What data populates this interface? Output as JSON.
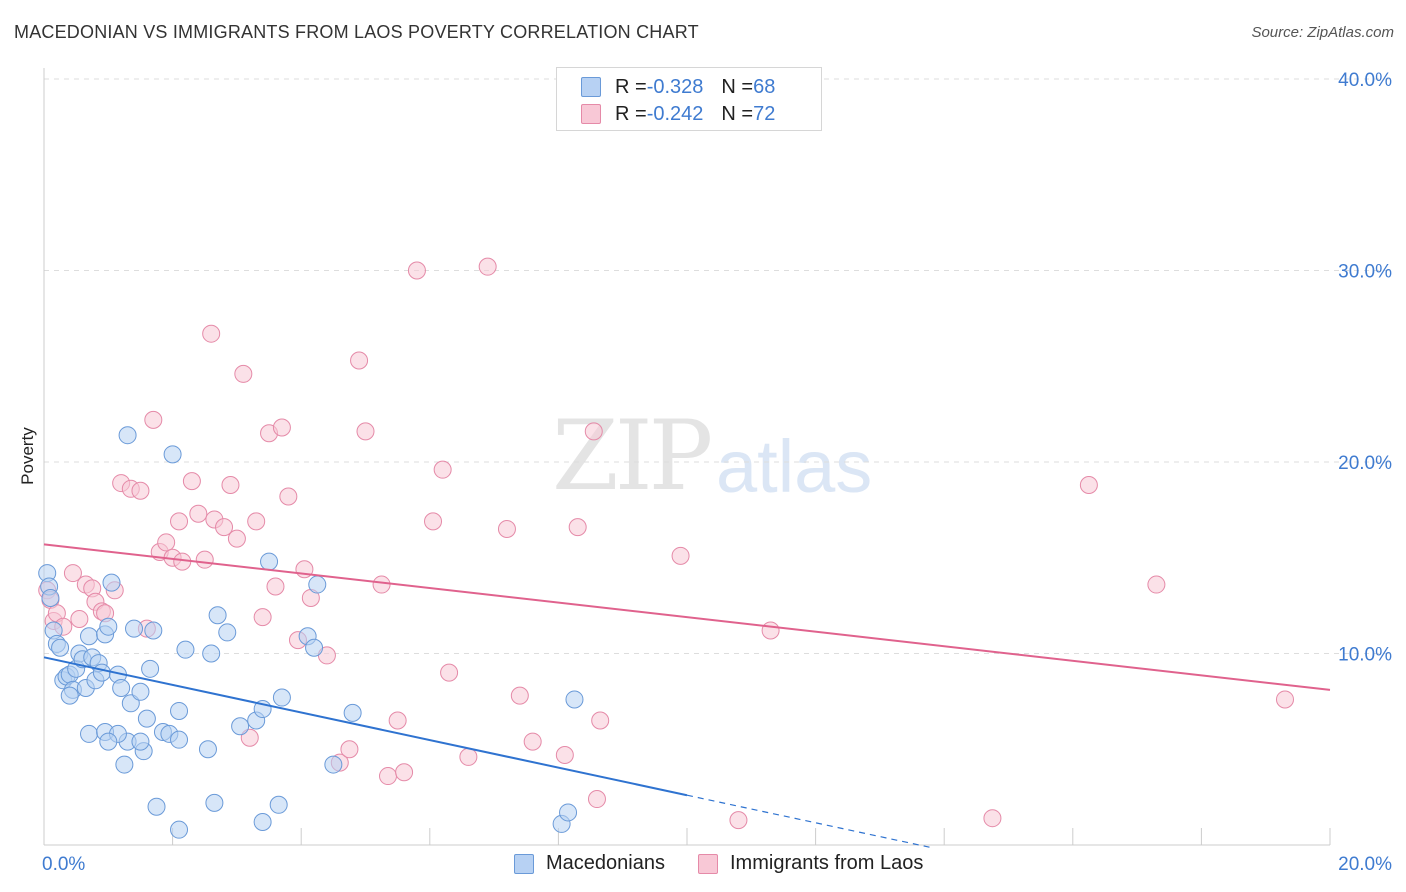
{
  "title": "MACEDONIAN VS IMMIGRANTS FROM LAOS POVERTY CORRELATION CHART",
  "source": "Source: ZipAtlas.com",
  "watermark": {
    "zip": "ZIP",
    "atlas": "atlas"
  },
  "legend": {
    "rows": [
      {
        "r_label": "R = ",
        "r_value": "-0.328",
        "n_label": "N = ",
        "n_value": "68"
      },
      {
        "r_label": "R = ",
        "r_value": "-0.242",
        "n_label": "N = ",
        "n_value": "72"
      }
    ]
  },
  "colors": {
    "blue_fill": "#b7d1f3",
    "blue_stroke": "#6a9ad8",
    "blue_line": "#2f73d0",
    "pink_fill": "#f8c8d6",
    "pink_stroke": "#e58aa8",
    "pink_line": "#e0628d",
    "grid": "#dddddd",
    "tick_text": "#3f7bd0"
  },
  "chart_data": {
    "type": "scatter",
    "title": "MACEDONIAN VS IMMIGRANTS FROM LAOS POVERTY CORRELATION CHART",
    "xlabel": "",
    "ylabel": "Poverty",
    "xlim": [
      0,
      20
    ],
    "ylim": [
      0,
      40
    ],
    "x_ticks": [
      "0.0%",
      "20.0%"
    ],
    "y_ticks": [
      "10.0%",
      "20.0%",
      "30.0%",
      "40.0%"
    ],
    "y_tick_values": [
      10,
      20,
      30,
      40
    ],
    "grid": true,
    "legend_position": "top-center",
    "series": [
      {
        "name": "Macedonians",
        "color": "#6a9ad8",
        "r": -0.328,
        "n": 68,
        "trend": {
          "x0": 0,
          "y0": 9.8,
          "x1": 10,
          "y1": 2.6,
          "dashed_to_x": 13.8
        },
        "points": [
          [
            0.05,
            14.2
          ],
          [
            0.08,
            13.5
          ],
          [
            0.1,
            12.9
          ],
          [
            0.15,
            11.2
          ],
          [
            0.2,
            10.5
          ],
          [
            0.25,
            10.3
          ],
          [
            0.3,
            8.6
          ],
          [
            0.35,
            8.8
          ],
          [
            0.4,
            8.9
          ],
          [
            0.45,
            8.1
          ],
          [
            0.5,
            9.2
          ],
          [
            0.55,
            10.0
          ],
          [
            0.6,
            9.7
          ],
          [
            0.65,
            8.2
          ],
          [
            0.7,
            10.9
          ],
          [
            0.75,
            9.8
          ],
          [
            0.8,
            8.6
          ],
          [
            0.85,
            9.5
          ],
          [
            0.9,
            9.0
          ],
          [
            0.95,
            11.0
          ],
          [
            1.0,
            11.4
          ],
          [
            1.05,
            13.7
          ],
          [
            1.15,
            8.9
          ],
          [
            1.2,
            8.2
          ],
          [
            1.3,
            5.4
          ],
          [
            1.35,
            7.4
          ],
          [
            1.4,
            11.3
          ],
          [
            1.5,
            8.0
          ],
          [
            1.55,
            4.9
          ],
          [
            1.6,
            6.6
          ],
          [
            1.65,
            9.2
          ],
          [
            1.7,
            11.2
          ],
          [
            1.85,
            5.9
          ],
          [
            1.95,
            5.8
          ],
          [
            2.0,
            20.4
          ],
          [
            2.1,
            5.5
          ],
          [
            2.2,
            10.2
          ],
          [
            2.1,
            7.0
          ],
          [
            2.6,
            10.0
          ],
          [
            2.7,
            12.0
          ],
          [
            2.85,
            11.1
          ],
          [
            3.05,
            6.2
          ],
          [
            3.3,
            6.5
          ],
          [
            3.4,
            7.1
          ],
          [
            3.5,
            14.8
          ],
          [
            3.7,
            7.7
          ],
          [
            4.1,
            10.9
          ],
          [
            4.2,
            10.3
          ],
          [
            4.25,
            13.6
          ],
          [
            4.5,
            4.2
          ],
          [
            4.8,
            6.9
          ],
          [
            1.3,
            21.4
          ],
          [
            0.7,
            5.8
          ],
          [
            0.95,
            5.9
          ],
          [
            1.15,
            5.8
          ],
          [
            1.25,
            4.2
          ],
          [
            2.55,
            5.0
          ],
          [
            1.75,
            2.0
          ],
          [
            2.1,
            0.8
          ],
          [
            2.65,
            2.2
          ],
          [
            3.4,
            1.2
          ],
          [
            3.65,
            2.1
          ],
          [
            8.05,
            1.1
          ],
          [
            8.15,
            1.7
          ],
          [
            8.25,
            7.6
          ],
          [
            1.0,
            5.4
          ],
          [
            1.5,
            5.4
          ],
          [
            0.4,
            7.8
          ]
        ]
      },
      {
        "name": "Immigrants from Laos",
        "color": "#e58aa8",
        "r": -0.242,
        "n": 72,
        "trend": {
          "x0": 0,
          "y0": 15.7,
          "x1": 20,
          "y1": 8.1
        },
        "points": [
          [
            0.05,
            13.3
          ],
          [
            0.1,
            12.8
          ],
          [
            0.15,
            11.7
          ],
          [
            0.2,
            12.1
          ],
          [
            0.3,
            11.4
          ],
          [
            0.45,
            14.2
          ],
          [
            0.55,
            11.8
          ],
          [
            0.65,
            13.6
          ],
          [
            0.75,
            13.4
          ],
          [
            0.8,
            12.7
          ],
          [
            0.9,
            12.2
          ],
          [
            0.95,
            12.1
          ],
          [
            1.1,
            13.3
          ],
          [
            1.2,
            18.9
          ],
          [
            1.35,
            18.6
          ],
          [
            1.5,
            18.5
          ],
          [
            1.6,
            11.3
          ],
          [
            1.7,
            22.2
          ],
          [
            1.8,
            15.3
          ],
          [
            1.9,
            15.8
          ],
          [
            2.0,
            15.0
          ],
          [
            2.1,
            16.9
          ],
          [
            2.15,
            14.8
          ],
          [
            2.3,
            19.0
          ],
          [
            2.4,
            17.3
          ],
          [
            2.5,
            14.9
          ],
          [
            2.6,
            26.7
          ],
          [
            2.65,
            17.0
          ],
          [
            2.8,
            16.6
          ],
          [
            2.9,
            18.8
          ],
          [
            3.0,
            16.0
          ],
          [
            3.1,
            24.6
          ],
          [
            3.2,
            5.6
          ],
          [
            3.3,
            16.9
          ],
          [
            3.4,
            11.9
          ],
          [
            3.5,
            21.5
          ],
          [
            3.6,
            13.5
          ],
          [
            3.7,
            21.8
          ],
          [
            3.8,
            18.2
          ],
          [
            3.95,
            10.7
          ],
          [
            4.05,
            14.4
          ],
          [
            4.15,
            12.9
          ],
          [
            4.4,
            9.9
          ],
          [
            4.6,
            4.3
          ],
          [
            4.75,
            5.0
          ],
          [
            4.9,
            25.3
          ],
          [
            5.0,
            21.6
          ],
          [
            5.25,
            13.6
          ],
          [
            5.35,
            3.6
          ],
          [
            5.5,
            6.5
          ],
          [
            5.6,
            3.8
          ],
          [
            5.8,
            30.0
          ],
          [
            6.05,
            16.9
          ],
          [
            6.2,
            19.6
          ],
          [
            6.3,
            9.0
          ],
          [
            6.6,
            4.6
          ],
          [
            6.9,
            30.2
          ],
          [
            7.2,
            16.5
          ],
          [
            7.4,
            7.8
          ],
          [
            7.6,
            5.4
          ],
          [
            8.1,
            4.7
          ],
          [
            8.3,
            16.6
          ],
          [
            8.55,
            21.6
          ],
          [
            8.6,
            2.4
          ],
          [
            8.65,
            6.5
          ],
          [
            9.9,
            15.1
          ],
          [
            10.8,
            1.3
          ],
          [
            11.3,
            11.2
          ],
          [
            14.75,
            1.4
          ],
          [
            16.25,
            18.8
          ],
          [
            17.3,
            13.6
          ],
          [
            19.3,
            7.6
          ]
        ]
      }
    ]
  }
}
